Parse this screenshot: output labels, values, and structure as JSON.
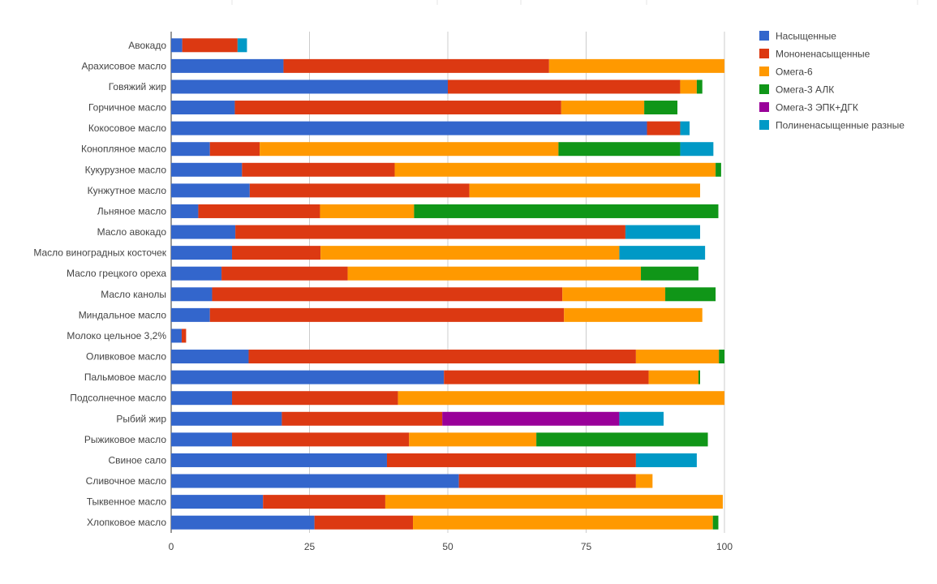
{
  "chart_data": {
    "type": "bar",
    "orientation": "horizontal",
    "stacked": true,
    "categories": [
      "Авокадо",
      "Арахисовое масло",
      "Говяжий жир",
      "Горчичное масло",
      "Кокосовое масло",
      "Конопляное масло",
      "Кукурузное масло",
      "Кунжутное масло",
      "Льняное масло",
      "Масло авокадо",
      "Масло виноградных косточек",
      "Масло грецкого ореха",
      "Масло канолы",
      "Миндальное масло",
      "Молоко цельное 3,2%",
      "Оливковое масло",
      "Пальмовое масло",
      "Подсолнечное масло",
      "Рыбий жир",
      "Рыжиковое масло",
      "Свиное сало",
      "Сливочное масло",
      "Тыквенное масло",
      "Хлопковое масло"
    ],
    "series": [
      {
        "name": "Насыщенные",
        "color": "#3366cc",
        "values": [
          2,
          20.3,
          50,
          11.5,
          86,
          7,
          12.8,
          14.2,
          4.9,
          11.6,
          11,
          9.1,
          7.4,
          7,
          1.9,
          14,
          49.3,
          11,
          20,
          11,
          39,
          52,
          16.6,
          25.9
        ]
      },
      {
        "name": "Мононенасыщенные",
        "color": "#dc3912",
        "values": [
          10,
          48,
          42,
          59,
          6,
          9,
          27.6,
          39.7,
          22,
          70.5,
          16,
          22.8,
          63.3,
          64,
          0.8,
          70,
          37,
          30,
          29,
          32,
          45,
          32,
          22.1,
          17.8
        ]
      },
      {
        "name": "Омега-6",
        "color": "#ff9900",
        "values": [
          0,
          32,
          3,
          15,
          0,
          54,
          58,
          41.7,
          17,
          0,
          54,
          53,
          18.6,
          25,
          0,
          15,
          9,
          59,
          0,
          23,
          0,
          3,
          61,
          54.2
        ]
      },
      {
        "name": "Омега-3 АЛК",
        "color": "#109618",
        "values": [
          0,
          0,
          1,
          6,
          0,
          22,
          1,
          0,
          55,
          0,
          0,
          10.4,
          9.1,
          0,
          0,
          1,
          0.3,
          0,
          0,
          31,
          0,
          0,
          0,
          1
        ]
      },
      {
        "name": "Омега-3 ЭПК+ДГК",
        "color": "#990099",
        "values": [
          0,
          0,
          0,
          0,
          0,
          0,
          0,
          0,
          0,
          0,
          0,
          0,
          0,
          0,
          0,
          0,
          0,
          0,
          32,
          0,
          0,
          0,
          0,
          0
        ]
      },
      {
        "name": "Полиненасыщенные разные",
        "color": "#0099c6",
        "values": [
          1.7,
          0,
          0,
          0,
          1.7,
          6,
          0,
          0,
          0,
          13.5,
          15.5,
          0,
          0,
          0,
          0,
          0,
          0,
          0,
          8,
          0,
          11,
          0,
          0,
          0
        ]
      }
    ],
    "xlim": [
      0,
      100
    ],
    "ticks": [
      "0",
      "25",
      "50",
      "75",
      "100"
    ],
    "tick_values": [
      0,
      25,
      50,
      75,
      100
    ],
    "title": "",
    "xlabel": "",
    "ylabel": "",
    "grid": true,
    "legend_position": "right"
  }
}
